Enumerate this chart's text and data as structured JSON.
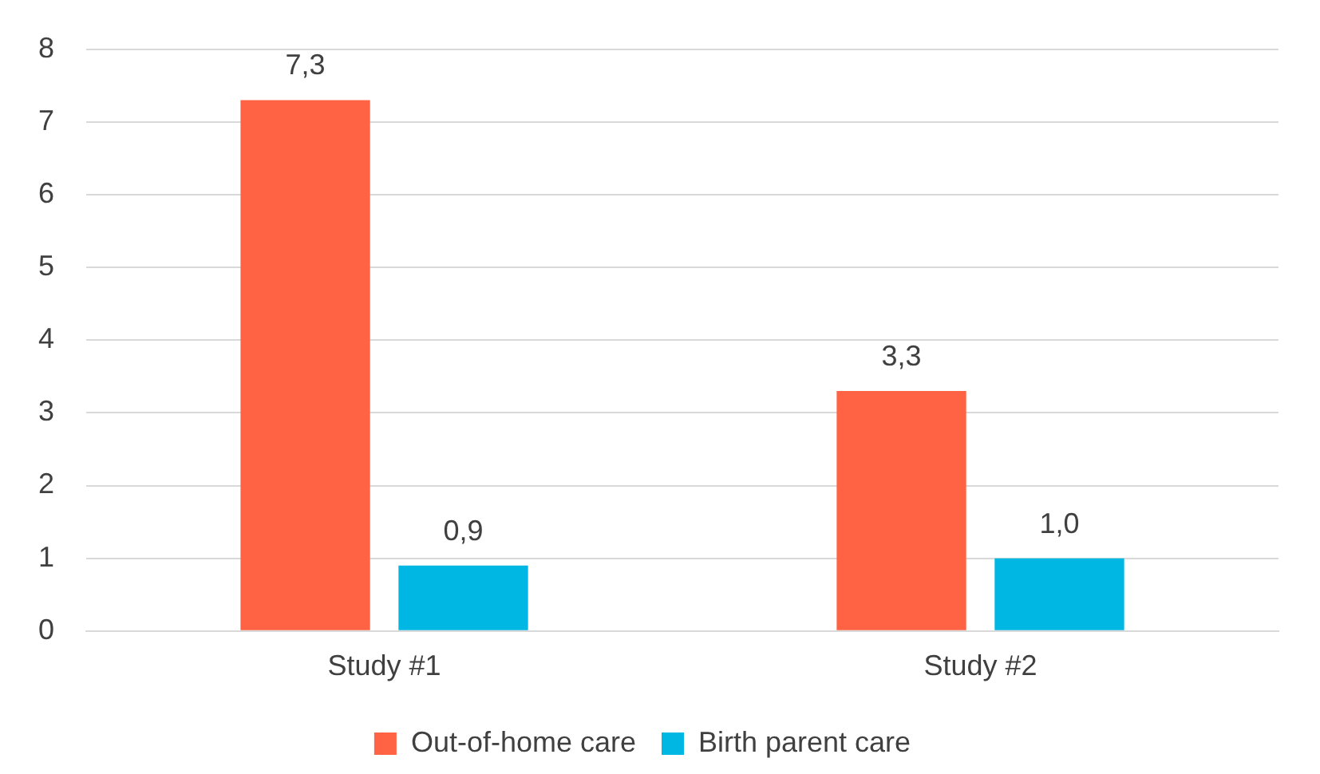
{
  "chart_data": {
    "type": "bar",
    "categories": [
      "Study #1",
      "Study #2"
    ],
    "series": [
      {
        "name": "Out-of-home care",
        "color": "#ff6344",
        "values": [
          7.3,
          3.3
        ],
        "value_labels": [
          "7,3",
          "3,3"
        ]
      },
      {
        "name": "Birth parent care",
        "color": "#00b6e3",
        "values": [
          0.9,
          1.0
        ],
        "value_labels": [
          "0,9",
          "1,0"
        ]
      }
    ],
    "ylim": [
      0,
      8
    ],
    "yticks": [
      0,
      1,
      2,
      3,
      4,
      5,
      6,
      7,
      8
    ],
    "grid": "y",
    "legend": "bottom"
  }
}
